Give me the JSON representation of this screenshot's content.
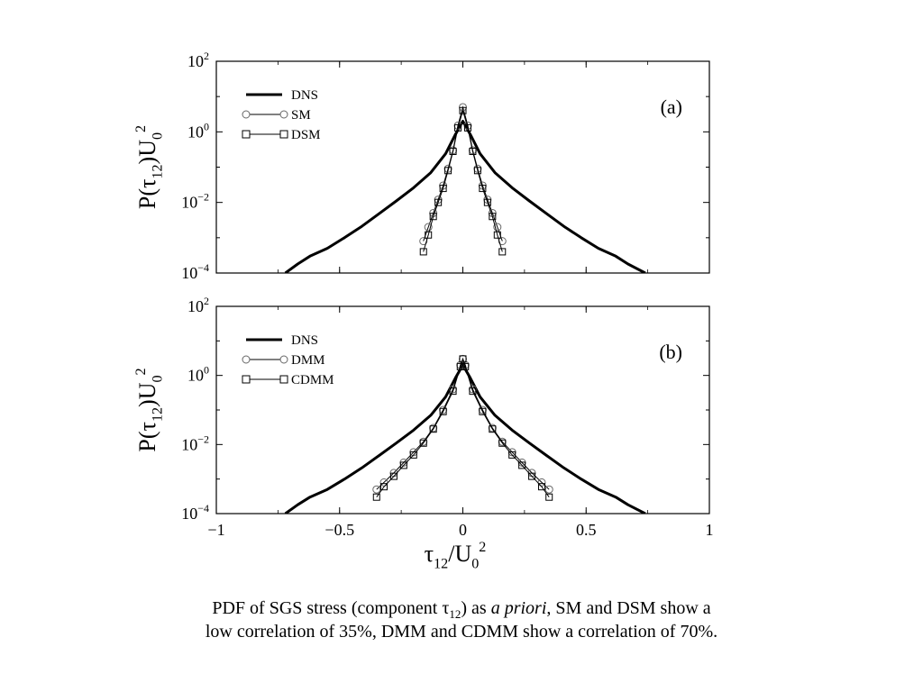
{
  "chart_data": [
    {
      "type": "line",
      "panel_label": "(a)",
      "xlim": [
        -1,
        1
      ],
      "ylim_log10": [
        -4,
        2
      ],
      "y_scale": "log",
      "ylabel": "P(τ12)U0^2",
      "legend": {
        "placement": "top-left",
        "entries": [
          "DNS",
          "SM",
          "DSM"
        ]
      },
      "series": [
        {
          "name": "DNS",
          "marker": "none",
          "x": [
            -0.72,
            -0.67,
            -0.62,
            -0.55,
            -0.48,
            -0.41,
            -0.34,
            -0.27,
            -0.2,
            -0.13,
            -0.07,
            -0.03,
            0.0,
            0.03,
            0.07,
            0.13,
            0.2,
            0.27,
            0.34,
            0.41,
            0.48,
            0.55,
            0.62,
            0.67,
            0.74
          ],
          "y": [
            0.0001,
            0.00018,
            0.0003,
            0.0005,
            0.001,
            0.0021,
            0.0048,
            0.011,
            0.026,
            0.07,
            0.24,
            0.85,
            2.0,
            0.85,
            0.24,
            0.07,
            0.026,
            0.011,
            0.0048,
            0.0021,
            0.001,
            0.0005,
            0.0003,
            0.00018,
            0.0001
          ]
        },
        {
          "name": "SM",
          "marker": "circle",
          "x": [
            -0.16,
            -0.14,
            -0.12,
            -0.1,
            -0.08,
            -0.06,
            -0.04,
            -0.02,
            0.0,
            0.02,
            0.04,
            0.06,
            0.08,
            0.1,
            0.12,
            0.14,
            0.16
          ],
          "y": [
            0.0008,
            0.002,
            0.005,
            0.012,
            0.03,
            0.09,
            0.3,
            1.5,
            5.0,
            1.5,
            0.3,
            0.09,
            0.03,
            0.012,
            0.005,
            0.002,
            0.0008
          ]
        },
        {
          "name": "DSM",
          "marker": "square",
          "x": [
            -0.16,
            -0.14,
            -0.12,
            -0.1,
            -0.08,
            -0.06,
            -0.04,
            -0.02,
            0.0,
            0.02,
            0.04,
            0.06,
            0.08,
            0.1,
            0.12,
            0.14,
            0.16
          ],
          "y": [
            0.0004,
            0.0012,
            0.004,
            0.01,
            0.025,
            0.08,
            0.28,
            1.3,
            4.0,
            1.3,
            0.28,
            0.08,
            0.025,
            0.01,
            0.004,
            0.0012,
            0.0004
          ]
        }
      ]
    },
    {
      "type": "line",
      "panel_label": "(b)",
      "xlim": [
        -1,
        1
      ],
      "ylim_log10": [
        -4,
        2
      ],
      "y_scale": "log",
      "xlabel": "τ12/U0^2",
      "ylabel": "P(τ12)U0^2",
      "xticks": [
        "−1",
        "−0.5",
        "0",
        "0.5",
        "1"
      ],
      "legend": {
        "placement": "top-left",
        "entries": [
          "DNS",
          "DMM",
          "CDMM"
        ]
      },
      "series": [
        {
          "name": "DNS",
          "marker": "none",
          "x": [
            -0.72,
            -0.67,
            -0.62,
            -0.55,
            -0.48,
            -0.41,
            -0.34,
            -0.27,
            -0.2,
            -0.13,
            -0.07,
            -0.03,
            0.0,
            0.03,
            0.07,
            0.13,
            0.2,
            0.27,
            0.34,
            0.41,
            0.48,
            0.55,
            0.62,
            0.67,
            0.74
          ],
          "y": [
            0.0001,
            0.00018,
            0.0003,
            0.0005,
            0.001,
            0.0021,
            0.0048,
            0.011,
            0.026,
            0.07,
            0.24,
            0.85,
            2.0,
            0.85,
            0.24,
            0.07,
            0.026,
            0.011,
            0.0048,
            0.0021,
            0.001,
            0.0005,
            0.0003,
            0.00018,
            0.0001
          ]
        },
        {
          "name": "DMM",
          "marker": "circle",
          "x": [
            -0.35,
            -0.32,
            -0.28,
            -0.24,
            -0.2,
            -0.16,
            -0.12,
            -0.08,
            -0.04,
            -0.01,
            0.0,
            0.01,
            0.04,
            0.08,
            0.12,
            0.16,
            0.2,
            0.24,
            0.28,
            0.32,
            0.35
          ],
          "y": [
            0.0005,
            0.0008,
            0.0015,
            0.003,
            0.006,
            0.012,
            0.03,
            0.1,
            0.4,
            2.0,
            3.0,
            2.0,
            0.4,
            0.1,
            0.03,
            0.012,
            0.006,
            0.003,
            0.0015,
            0.0008,
            0.0005
          ]
        },
        {
          "name": "CDMM",
          "marker": "square",
          "x": [
            -0.35,
            -0.32,
            -0.28,
            -0.24,
            -0.2,
            -0.16,
            -0.12,
            -0.08,
            -0.04,
            -0.01,
            0.0,
            0.01,
            0.04,
            0.08,
            0.12,
            0.16,
            0.2,
            0.24,
            0.28,
            0.32,
            0.35
          ],
          "y": [
            0.0003,
            0.0006,
            0.0012,
            0.0025,
            0.005,
            0.011,
            0.028,
            0.09,
            0.35,
            1.8,
            3.0,
            1.8,
            0.35,
            0.09,
            0.028,
            0.011,
            0.005,
            0.0025,
            0.0012,
            0.0006,
            0.0003
          ]
        }
      ]
    }
  ],
  "caption": {
    "line1_a": "PDF of SGS stress (component τ",
    "line1_sub": "12",
    "line1_b": ") as ",
    "line1_italic": "a priori",
    "line1_c": ", SM and DSM show a",
    "line2": "low correlation of 35%, DMM and CDMM show a correlation of 70%."
  }
}
